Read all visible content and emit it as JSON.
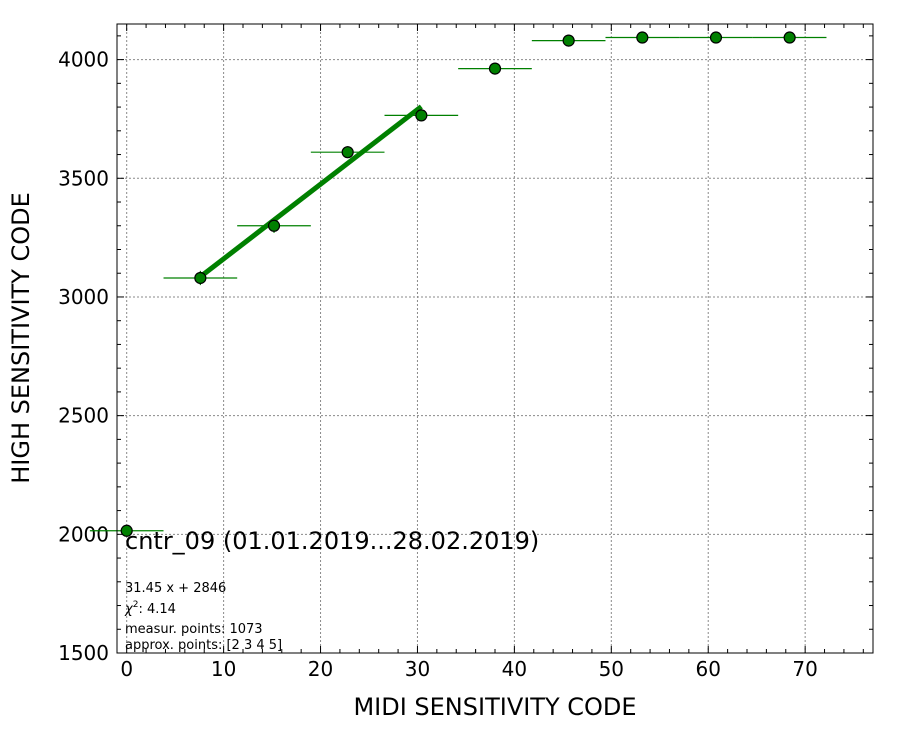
{
  "chart_data": {
    "type": "scatter",
    "xlabel": "MIDI SENSITIVITY CODE",
    "ylabel": "HIGH SENSITIVITY CODE",
    "xlim": [
      -1,
      77
    ],
    "ylim": [
      1500,
      4150
    ],
    "xticks": [
      "0",
      "10",
      "20",
      "30",
      "40",
      "50",
      "60",
      "70"
    ],
    "yticks": [
      "1500",
      "2000",
      "2500",
      "3000",
      "3500",
      "4000"
    ],
    "grid": true,
    "colors": {
      "points": "#008000",
      "fit": "#008000",
      "edge": "#000000"
    },
    "series": [
      {
        "points": [
          {
            "x": 0.0,
            "y": 2015,
            "xerr": 3.8,
            "yerr": 10
          },
          {
            "x": 7.6,
            "y": 3080,
            "xerr": 3.8,
            "yerr": 30
          },
          {
            "x": 15.2,
            "y": 3300,
            "xerr": 3.8,
            "yerr": 30
          },
          {
            "x": 22.8,
            "y": 3610,
            "xerr": 3.8,
            "yerr": 25
          },
          {
            "x": 30.4,
            "y": 3765,
            "xerr": 3.8,
            "yerr": 25
          },
          {
            "x": 38.0,
            "y": 3962,
            "xerr": 3.8,
            "yerr": 10
          },
          {
            "x": 45.6,
            "y": 4080,
            "xerr": 3.8,
            "yerr": 10
          },
          {
            "x": 53.2,
            "y": 4093,
            "xerr": 3.8,
            "yerr": 5
          },
          {
            "x": 60.8,
            "y": 4093,
            "xerr": 3.8,
            "yerr": 5
          },
          {
            "x": 68.4,
            "y": 4093,
            "xerr": 3.8,
            "yerr": 5
          }
        ]
      }
    ],
    "fit": {
      "slope": 31.45,
      "intercept": 2846,
      "x_from": 7.6,
      "x_to": 30.4
    },
    "annotations": {
      "title": "cntr_09 (01.01.2019...28.02.2019)",
      "equation": "31.45 x + 2846",
      "chi2_symbol": "χ",
      "chi2_exp": "2",
      "chi2_value": ": 4.14",
      "measur_points": "measur. points: 1073",
      "approx_points": "approx. points: [2 3 4 5]"
    }
  }
}
